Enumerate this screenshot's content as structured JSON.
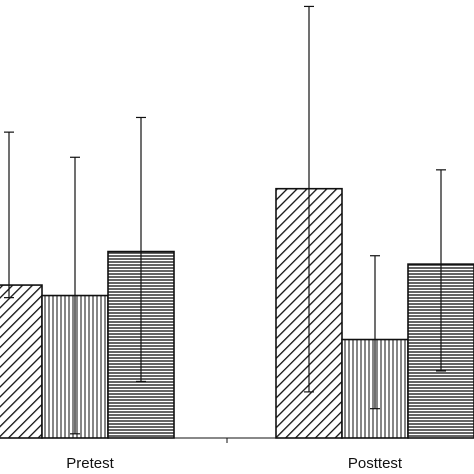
{
  "chart_data": {
    "type": "bar",
    "categories": [
      "Pretest",
      "Posttest"
    ],
    "ylim": [
      0,
      100
    ],
    "grid": false,
    "series": [
      {
        "pattern": "diagonal-hatch",
        "values": [
          36.5,
          59.5
        ],
        "error_low": [
          33.5,
          11.0
        ],
        "error_high": [
          73.0,
          103.0
        ]
      },
      {
        "pattern": "vertical-lines",
        "values": [
          34.0,
          23.5
        ],
        "error_low": [
          1.0,
          7.0
        ],
        "error_high": [
          67.0,
          43.5
        ]
      },
      {
        "pattern": "horizontal-lines",
        "values": [
          44.5,
          41.5
        ],
        "error_low": [
          13.5,
          16.0
        ],
        "error_high": [
          76.5,
          64.0
        ]
      }
    ],
    "colors": {
      "stroke": "#111111",
      "background": "#ffffff"
    }
  }
}
